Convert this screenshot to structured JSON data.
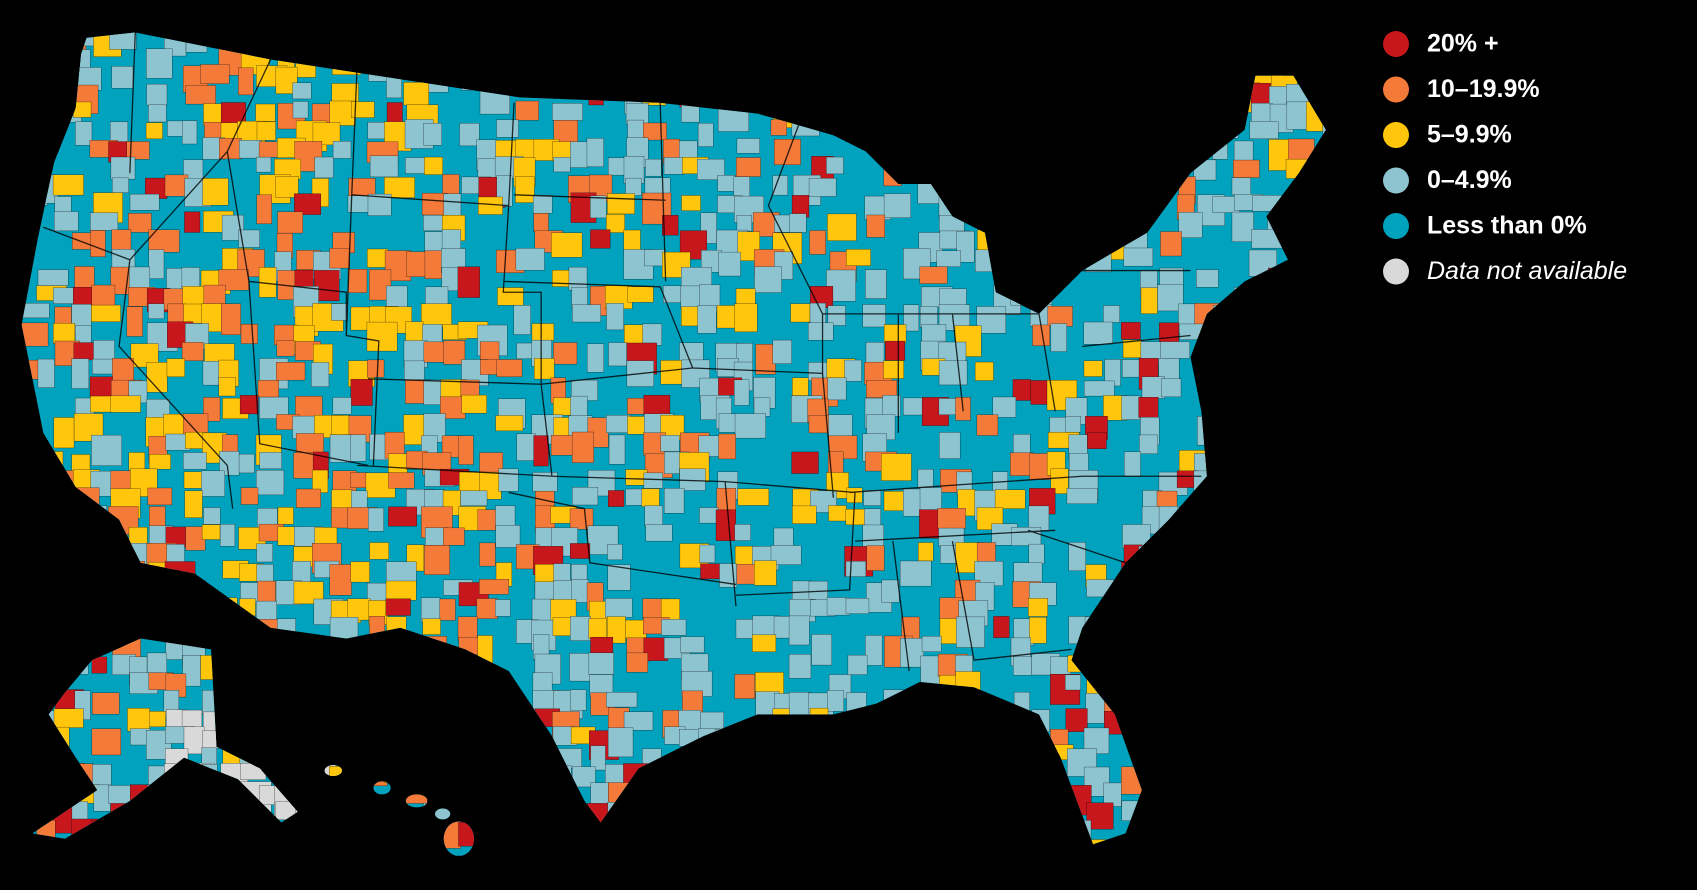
{
  "legend": {
    "items": [
      {
        "label": "20% +",
        "color": "#c8161d"
      },
      {
        "label": "10–19.9%",
        "color": "#f47a3a"
      },
      {
        "label": "5–9.9%",
        "color": "#ffc60b"
      },
      {
        "label": "0–4.9%",
        "color": "#8dc4d0"
      },
      {
        "label": "Less than 0%",
        "color": "#00a2bd"
      },
      {
        "label": "Data not available",
        "color": "#d9d9d9"
      }
    ]
  }
}
